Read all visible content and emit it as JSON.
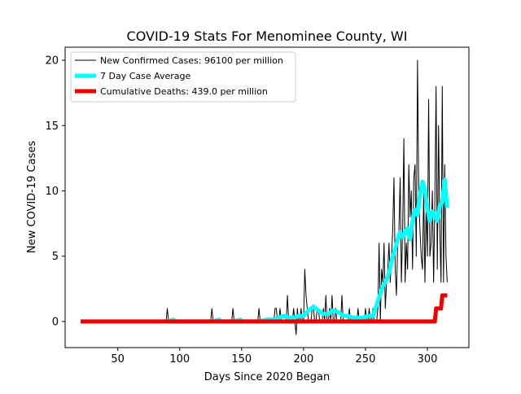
{
  "chart_data": {
    "type": "line",
    "title": "COVID-19 Stats For Menominee County, WI",
    "xlabel": "Days Since 2020 Began",
    "ylabel": "New COVID-19 Cases",
    "xlim": [
      7.5,
      333.5
    ],
    "ylim": [
      -2,
      21
    ],
    "xticks": [
      50,
      100,
      150,
      200,
      250,
      300
    ],
    "yticks": [
      0,
      5,
      10,
      15,
      20
    ],
    "grid": false,
    "legend_position": "upper-left",
    "series": [
      {
        "name": "New Confirmed Cases: 96100 per million",
        "color": "#000000",
        "x": [
          20,
          89,
          90,
          91,
          92,
          93,
          125,
          126,
          127,
          128,
          142,
          143,
          144,
          145,
          163,
          164,
          165,
          166,
          176,
          177,
          178,
          179,
          180,
          181,
          182,
          183,
          186,
          187,
          188,
          189,
          190,
          192,
          193,
          194,
          195,
          196,
          197,
          198,
          199,
          200,
          201,
          202,
          203,
          204,
          205,
          206,
          207,
          208,
          209,
          210,
          211,
          212,
          213,
          214,
          215,
          216,
          217,
          218,
          219,
          220,
          221,
          222,
          223,
          224,
          225,
          226,
          227,
          228,
          229,
          230,
          231,
          232,
          233,
          234,
          235,
          236,
          237,
          238,
          239,
          240,
          241,
          242,
          243,
          244,
          245,
          246,
          247,
          248,
          249,
          250,
          251,
          252,
          253,
          254,
          255,
          256,
          257,
          258,
          259,
          260,
          261,
          262,
          263,
          264,
          265,
          266,
          267,
          268,
          269,
          270,
          271,
          272,
          273,
          274,
          275,
          276,
          277,
          278,
          279,
          280,
          281,
          282,
          283,
          284,
          285,
          286,
          287,
          288,
          289,
          290,
          291,
          292,
          293,
          294,
          295,
          296,
          297,
          298,
          299,
          300,
          301,
          302,
          303,
          304,
          305,
          306,
          307,
          308,
          309,
          310,
          311,
          312,
          313,
          314,
          315,
          316
        ],
        "values": [
          0,
          0,
          1,
          0,
          0,
          0,
          0,
          1,
          0,
          0,
          0,
          1,
          0,
          0,
          0,
          1,
          0,
          0,
          0,
          1,
          1,
          0,
          0,
          1,
          0,
          0,
          0,
          2,
          0,
          0,
          0,
          1,
          0,
          -1,
          1,
          0,
          0,
          1,
          0,
          0,
          4,
          2,
          1,
          0,
          0,
          0,
          1,
          1,
          0,
          0,
          1,
          1,
          0,
          0,
          0,
          1,
          0,
          2,
          0,
          0,
          1,
          0,
          2,
          0,
          0,
          1,
          0,
          0,
          0,
          0,
          2,
          0,
          0,
          0,
          0,
          0,
          1,
          0,
          0,
          0,
          0,
          0,
          0,
          1,
          0,
          0,
          0,
          0,
          0,
          1,
          0,
          0,
          1,
          0,
          0,
          1,
          0,
          0,
          0,
          1,
          6,
          0,
          4,
          3,
          6,
          1,
          3,
          4,
          6,
          3,
          5,
          7,
          11,
          4,
          2,
          6,
          7,
          11,
          3,
          7,
          14,
          3,
          6,
          4,
          12,
          8,
          10,
          4,
          11,
          12,
          5,
          20,
          10,
          7,
          5,
          4,
          10,
          3,
          9,
          5,
          17,
          5,
          6,
          10,
          3,
          9,
          18,
          4,
          15,
          7,
          3,
          18,
          3,
          12,
          5,
          3
        ]
      },
      {
        "name": "7 Day Case Average",
        "color": "#00ffff",
        "x": [
          89,
          95,
          125,
          132,
          142,
          149,
          163,
          170,
          176,
          180,
          184,
          188,
          192,
          196,
          200,
          204,
          208,
          212,
          216,
          220,
          224,
          228,
          232,
          236,
          240,
          244,
          248,
          252,
          256,
          258,
          260,
          262,
          264,
          266,
          268,
          270,
          272,
          274,
          276,
          278,
          280,
          282,
          284,
          286,
          288,
          290,
          292,
          294,
          296,
          298,
          300,
          302,
          304,
          306,
          308,
          310,
          312,
          314,
          316
        ],
        "values": [
          0,
          0.14,
          0,
          0.14,
          0,
          0.14,
          0,
          0.14,
          0.15,
          0.3,
          0.43,
          0.3,
          0.29,
          0.43,
          0.43,
          0.86,
          1.14,
          0.86,
          0.57,
          0.57,
          0.86,
          0.71,
          0.43,
          0.43,
          0.29,
          0.29,
          0.29,
          0.43,
          0.43,
          1.0,
          1.57,
          2.14,
          2.71,
          3.0,
          3.43,
          4.14,
          5.0,
          5.57,
          6.29,
          6.86,
          6.43,
          6.86,
          7.14,
          6.29,
          7.71,
          8.57,
          8.14,
          9.71,
          10.71,
          10.14,
          8.57,
          7.71,
          8.43,
          8.14,
          7.71,
          8.86,
          9.14,
          10.86,
          8.71
        ]
      },
      {
        "name": "Cumulative Deaths: 439.0 per million",
        "color": "#ee0000",
        "x": [
          20,
          306,
          307,
          311,
          312,
          316
        ],
        "values": [
          0,
          0,
          1,
          1,
          2,
          2
        ]
      }
    ]
  }
}
